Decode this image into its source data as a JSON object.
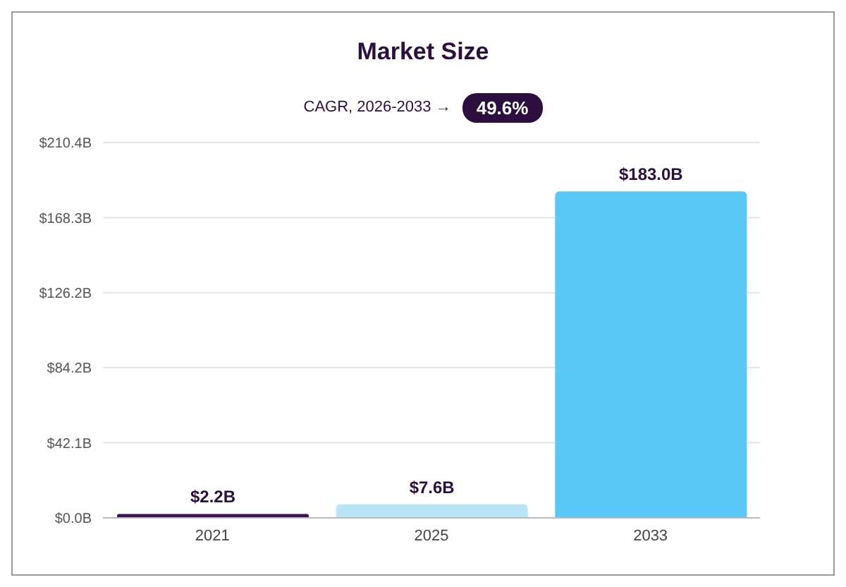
{
  "chart_data": {
    "type": "bar",
    "title": "Market Size",
    "subtitle": "CAGR, 2026-2033 →",
    "annotations": [
      "49.6%"
    ],
    "categories": [
      "2021",
      "2025",
      "2033"
    ],
    "values": [
      2.2,
      7.6,
      183.0
    ],
    "value_labels": [
      "$2.2B",
      "$7.6B",
      "$183.0B"
    ],
    "colors": [
      "#3a1350",
      "#b9e5f8",
      "#5ac8f6"
    ],
    "ylim": [
      0,
      210.4
    ],
    "yticks": [
      {
        "value": 0,
        "label": "$0.0B"
      },
      {
        "value": 42.1,
        "label": "$42.1B"
      },
      {
        "value": 84.2,
        "label": "$84.2B"
      },
      {
        "value": 126.2,
        "label": "$126.2B"
      },
      {
        "value": 168.3,
        "label": "$168.3B"
      },
      {
        "value": 210.4,
        "label": "$210.4B"
      }
    ],
    "grid": "y"
  }
}
